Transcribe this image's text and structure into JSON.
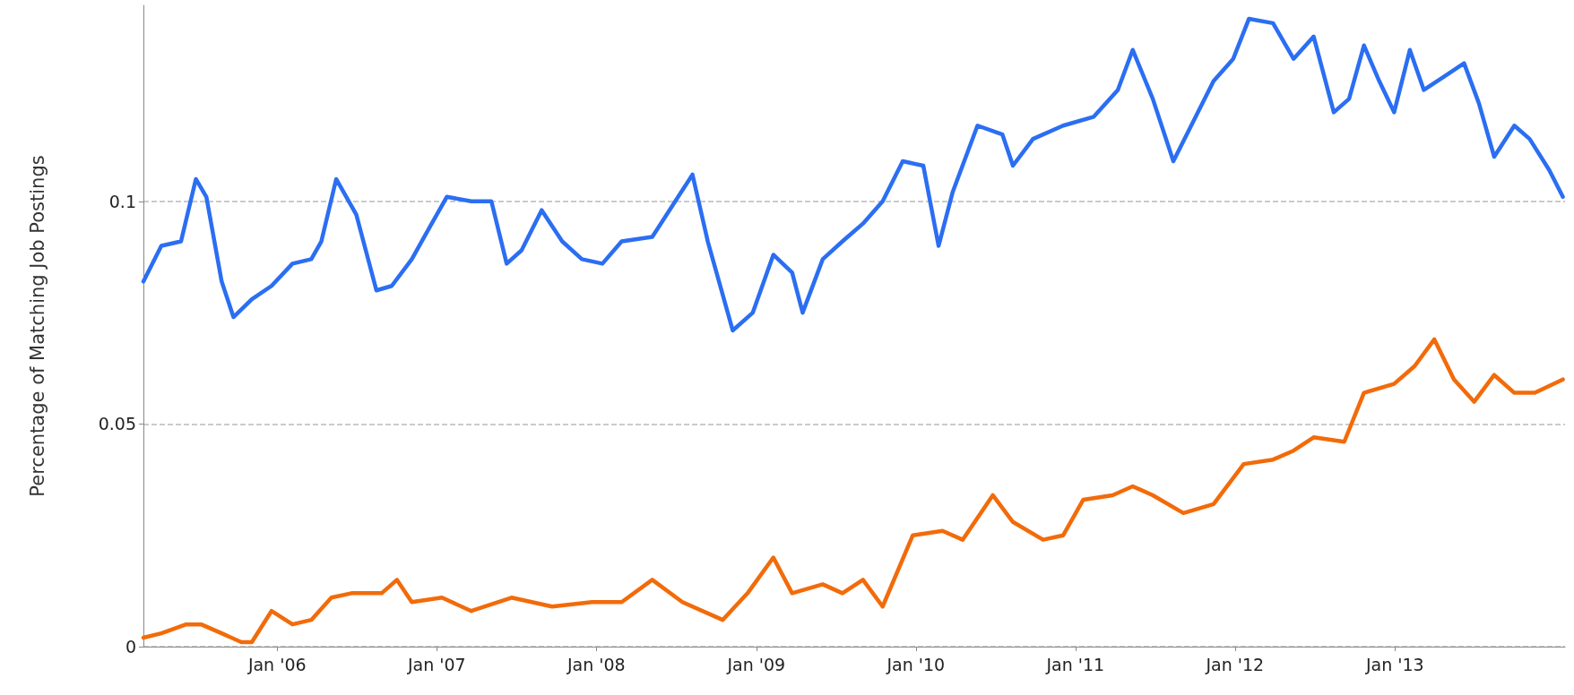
{
  "chart_data": {
    "type": "line",
    "ylabel": "Percentage of Matching Job Postings",
    "ylim": [
      0,
      0.144
    ],
    "yticks": [
      0,
      0.05,
      0.1
    ],
    "xlim": [
      "2005-03-01",
      "2014-01-25"
    ],
    "xticks": [
      {
        "value": "2006-01-01",
        "label": "Jan '06"
      },
      {
        "value": "2007-01-01",
        "label": "Jan '07"
      },
      {
        "value": "2008-01-01",
        "label": "Jan '08"
      },
      {
        "value": "2009-01-01",
        "label": "Jan '09"
      },
      {
        "value": "2010-01-01",
        "label": "Jan '10"
      },
      {
        "value": "2011-01-01",
        "label": "Jan '11"
      },
      {
        "value": "2012-01-01",
        "label": "Jan '12"
      },
      {
        "value": "2013-01-01",
        "label": "Jan '13"
      }
    ],
    "grid": "y",
    "marker": "none",
    "line_style": "solid",
    "series": [
      {
        "color": "#2b6ef2",
        "x": [
          "2005-03-01",
          "2005-04-11",
          "2005-05-26",
          "2005-06-29",
          "2005-07-23",
          "2005-08-27",
          "2005-09-23",
          "2005-11-04",
          "2005-12-19",
          "2006-02-05",
          "2006-03-20",
          "2006-04-12",
          "2006-05-16",
          "2006-07-01",
          "2006-08-16",
          "2006-09-20",
          "2006-11-05",
          "2006-12-09",
          "2007-01-24",
          "2007-03-21",
          "2007-05-06",
          "2007-06-10",
          "2007-07-14",
          "2007-08-29",
          "2007-10-15",
          "2007-11-29",
          "2008-01-15",
          "2008-02-28",
          "2008-05-08",
          "2008-06-23",
          "2008-08-08",
          "2008-09-12",
          "2008-11-08",
          "2008-12-24",
          "2009-02-09",
          "2009-03-24",
          "2009-04-17",
          "2009-06-02",
          "2009-07-17",
          "2009-09-02",
          "2009-10-17",
          "2009-12-02",
          "2010-01-18",
          "2010-02-22",
          "2010-03-26",
          "2010-05-22",
          "2010-07-18",
          "2010-08-11",
          "2010-09-26",
          "2010-12-04",
          "2011-02-12",
          "2011-04-08",
          "2011-05-12",
          "2011-06-27",
          "2011-08-13",
          "2011-09-28",
          "2011-11-13",
          "2011-12-28",
          "2012-02-02",
          "2012-03-28",
          "2012-05-14",
          "2012-06-29",
          "2012-08-14",
          "2012-09-18",
          "2012-10-22",
          "2012-11-26",
          "2012-12-30",
          "2013-02-04",
          "2013-03-08",
          "2013-04-23",
          "2013-06-08",
          "2013-07-12",
          "2013-08-16",
          "2013-10-01",
          "2013-11-05",
          "2013-12-20",
          "2014-01-20"
        ],
        "values": [
          0.082,
          0.09,
          0.091,
          0.105,
          0.101,
          0.082,
          0.074,
          0.078,
          0.081,
          0.086,
          0.087,
          0.091,
          0.105,
          0.097,
          0.08,
          0.081,
          0.087,
          0.093,
          0.101,
          0.1,
          0.1,
          0.086,
          0.089,
          0.098,
          0.091,
          0.087,
          0.086,
          0.091,
          0.092,
          0.099,
          0.106,
          0.091,
          0.071,
          0.075,
          0.088,
          0.084,
          0.075,
          0.087,
          0.091,
          0.095,
          0.1,
          0.109,
          0.108,
          0.09,
          0.102,
          0.117,
          0.115,
          0.108,
          0.114,
          0.117,
          0.119,
          0.125,
          0.134,
          0.123,
          0.109,
          0.118,
          0.127,
          0.132,
          0.141,
          0.14,
          0.132,
          0.137,
          0.12,
          0.123,
          0.135,
          0.127,
          0.12,
          0.134,
          0.125,
          0.128,
          0.131,
          0.122,
          0.11,
          0.117,
          0.114,
          0.107,
          0.101
        ]
      },
      {
        "color": "#f26b0a",
        "x": [
          "2005-03-01",
          "2005-04-11",
          "2005-06-07",
          "2005-07-11",
          "2005-08-27",
          "2005-10-11",
          "2005-11-04",
          "2005-12-19",
          "2006-02-05",
          "2006-03-20",
          "2006-05-05",
          "2006-06-20",
          "2006-08-28",
          "2006-10-02",
          "2006-11-05",
          "2007-01-13",
          "2007-03-21",
          "2007-06-21",
          "2007-09-22",
          "2007-12-22",
          "2008-02-28",
          "2008-05-08",
          "2008-07-16",
          "2008-10-16",
          "2008-12-12",
          "2009-02-09",
          "2009-03-24",
          "2009-06-02",
          "2009-07-17",
          "2009-09-02",
          "2009-10-17",
          "2009-12-25",
          "2010-03-03",
          "2010-04-18",
          "2010-06-26",
          "2010-08-11",
          "2010-10-19",
          "2010-12-04",
          "2011-01-19",
          "2011-03-27",
          "2011-05-12",
          "2011-06-27",
          "2011-09-05",
          "2011-11-13",
          "2012-01-21",
          "2012-03-28",
          "2012-05-14",
          "2012-06-29",
          "2012-09-07",
          "2012-10-22",
          "2012-12-30",
          "2013-02-15",
          "2013-04-01",
          "2013-05-16",
          "2013-07-01",
          "2013-08-16",
          "2013-10-01",
          "2013-11-17",
          "2014-01-20"
        ],
        "values": [
          0.002,
          0.003,
          0.005,
          0.005,
          0.003,
          0.001,
          0.001,
          0.008,
          0.005,
          0.006,
          0.011,
          0.012,
          0.012,
          0.015,
          0.01,
          0.011,
          0.008,
          0.011,
          0.009,
          0.01,
          0.01,
          0.015,
          0.01,
          0.006,
          0.012,
          0.02,
          0.012,
          0.014,
          0.012,
          0.015,
          0.009,
          0.025,
          0.026,
          0.024,
          0.034,
          0.028,
          0.024,
          0.025,
          0.033,
          0.034,
          0.036,
          0.034,
          0.03,
          0.032,
          0.041,
          0.042,
          0.044,
          0.047,
          0.046,
          0.057,
          0.059,
          0.063,
          0.069,
          0.06,
          0.055,
          0.061,
          0.057,
          0.057,
          0.06
        ]
      }
    ]
  }
}
